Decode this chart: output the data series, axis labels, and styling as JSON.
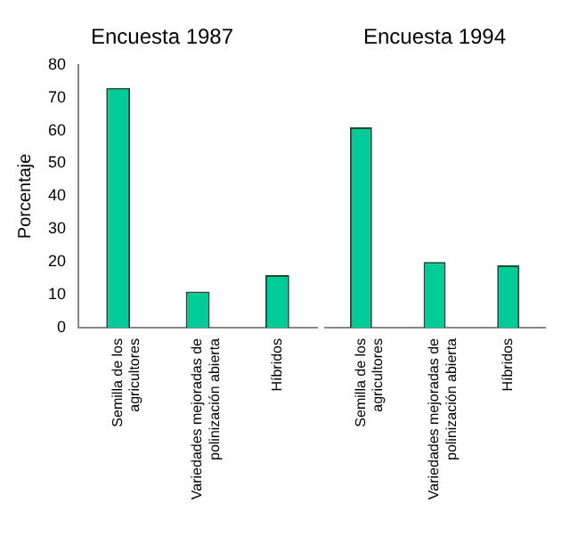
{
  "chart_data": [
    {
      "type": "bar",
      "title": "Encuesta 1987",
      "ylabel": "Porcentaje",
      "categories": [
        "Semilla de los agricultores",
        "Variedades mejoradas de polinización abierta",
        "Híbridos"
      ],
      "values": [
        73,
        11,
        16
      ],
      "color": "#00cc99",
      "ylim": [
        0,
        80
      ],
      "yticks": [
        0,
        10,
        20,
        30,
        40,
        50,
        60,
        70,
        80
      ],
      "grid": false,
      "legend": false
    },
    {
      "type": "bar",
      "title": "Encuesta 1994",
      "categories": [
        "Semilla de los agricultores",
        "Variedades mejoradas de polinización abierta",
        "Híbridos"
      ],
      "values": [
        61,
        20,
        19
      ],
      "color": "#00cc99",
      "ylim": [
        0,
        80
      ],
      "yticks": [
        0,
        10,
        20,
        30,
        40,
        50,
        60,
        70,
        80
      ],
      "grid": false,
      "legend": false,
      "tick_labels": "x"
    }
  ]
}
